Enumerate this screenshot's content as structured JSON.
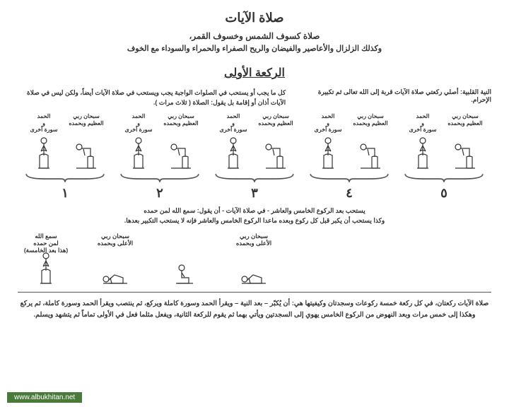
{
  "title": "صلاة الآيات",
  "subtitle": "صلاة كسوف الشمس وخسوف القمر،",
  "subtitle2": "وكذلك الزلزال والأعاصير والفيضان والريح الصفراء والحمراء والسوداء مع الخوف",
  "section": "الركعة الأولى",
  "intro_right": "النية القلبية: أصلي ركعتي صلاة الآيات قربة إلى الله تعالى ثم تكبيرة الإحرام.",
  "intro_left": "كل ما يجب أو يستحب في الصلوات الواجبة يجب ويستحب في صلاة الآيات أيضاً، ولكن ليس في صلاة الآيات أذان أو إقامة بل يقول: الصلاة ( ثلاث مرات ).",
  "stand_label": "الحمد\nو\nسورة أخرى",
  "ruku_label": "سبحان ربي\nالعظيم وبحمده",
  "numbers": [
    "١",
    "٢",
    "٣",
    "٤",
    "٥"
  ],
  "mid1": "يستحب بعد الركوع الخامس والعاشر - في صلاة الآيات - أن يقول:   سمع الله لمن حمده",
  "mid2": "وكذا يستحب أن يكبر قبل كل ركوع وبعده ماعدا الركوع الخامس والعاشر فإنه لا يستحب التكبير بعدها.",
  "sujood": {
    "rise": "سمع الله\nلمن حمده\n(هذا بعد الخامسة)",
    "sajda": "سبحان ربي\nالأعلى وبحمده",
    "sit": "",
    "sajda2": "سبحان ربي\nالأعلى وبحمده"
  },
  "footer": "صلاة الآيات ركعتان، في كل ركعة خمسة ركوعات وسجدتان وكيفيتها هي: أن يُكبّر – بعد النية – ويقرأ الحمد وسورة كاملة ويركع، ثم ينتصب ويقرأ الحمد وسورة كاملة، ثم يركع وهكذا إلى خمس مرات وبعد النهوض من الركوع الخامس يهوي إلى السجدتين ويأتي بهما ثم يقوم للركعة الثانية، ويفعل مثلما فعل في الأولى تماماً ثم يتشهد ويسلم.",
  "watermark": "www.albukhitan.net",
  "colors": {
    "stroke": "#333333",
    "brace": "#555555",
    "wm_bg": "#4a7a3a"
  }
}
